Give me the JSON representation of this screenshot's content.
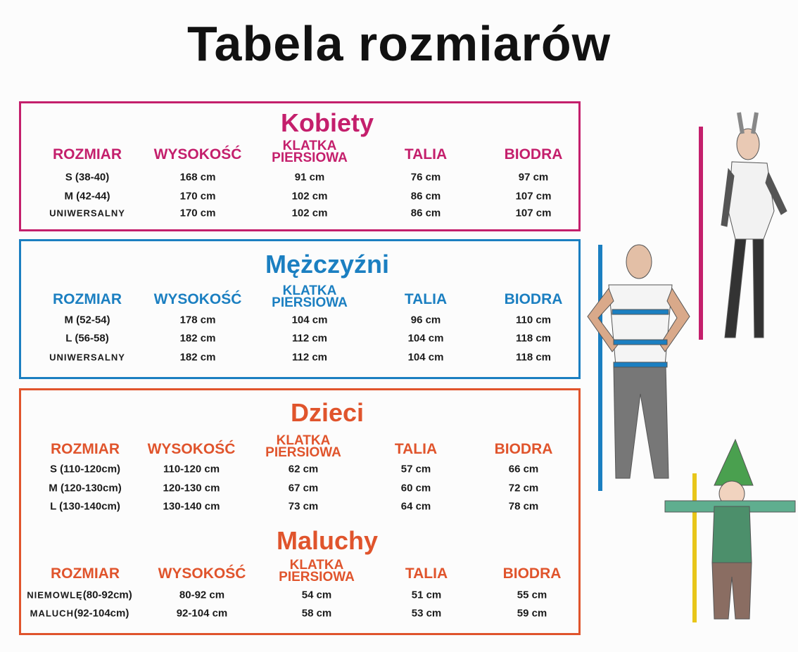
{
  "title": "Tabela rozmiarów",
  "headers": {
    "size": "ROZMIAR",
    "height": "WYSOKOŚĆ",
    "chest_1": "KLATKA",
    "chest_2": "PIERSIOWA",
    "waist": "TALIA",
    "hips": "BIODRA"
  },
  "sections": [
    {
      "name": "Kobiety",
      "color": "#c41f6c",
      "rows": [
        {
          "size": "S (38-40)",
          "height": "168 cm",
          "chest": "91 cm",
          "waist": "76 cm",
          "hips": "97 cm"
        },
        {
          "size": "M (42-44)",
          "height": "170 cm",
          "chest": "102 cm",
          "waist": "86 cm",
          "hips": "107 cm"
        },
        {
          "size": "UNIWERSALNY",
          "height": "170 cm",
          "chest": "102 cm",
          "waist": "86 cm",
          "hips": "107 cm"
        }
      ]
    },
    {
      "name": "Mężczyźni",
      "color": "#1b7fc1",
      "rows": [
        {
          "size": "M (52-54)",
          "height": "178 cm",
          "chest": "104 cm",
          "waist": "96 cm",
          "hips": "110 cm"
        },
        {
          "size": "L (56-58)",
          "height": "182 cm",
          "chest": "112 cm",
          "waist": "104 cm",
          "hips": "118 cm"
        },
        {
          "size": "UNIWERSALNY",
          "height": "182 cm",
          "chest": "112 cm",
          "waist": "104 cm",
          "hips": "118 cm"
        }
      ]
    },
    {
      "name": "Dzieci",
      "color": "#e0542c",
      "rows": [
        {
          "size": "S (110-120cm)",
          "height": "110-120 cm",
          "chest": "62 cm",
          "waist": "57 cm",
          "hips": "66 cm"
        },
        {
          "size": "M (120-130cm)",
          "height": "120-130 cm",
          "chest": "67 cm",
          "waist": "60 cm",
          "hips": "72 cm"
        },
        {
          "size": "L  (130-140cm)",
          "height": "130-140 cm",
          "chest": "73 cm",
          "waist": "64 cm",
          "hips": "78 cm"
        }
      ]
    },
    {
      "name": "Maluchy",
      "color": "#e0542c",
      "rows": [
        {
          "size_label": "NIEMOWLĘ",
          "size": "(80-92cm)",
          "height": "80-92 cm",
          "chest": "54 cm",
          "waist": "51 cm",
          "hips": "55 cm"
        },
        {
          "size_label": "MALUCH",
          "size": "(92-104cm)",
          "height": "92-104 cm",
          "chest": "58 cm",
          "waist": "53 cm",
          "hips": "59 cm"
        }
      ]
    }
  ]
}
